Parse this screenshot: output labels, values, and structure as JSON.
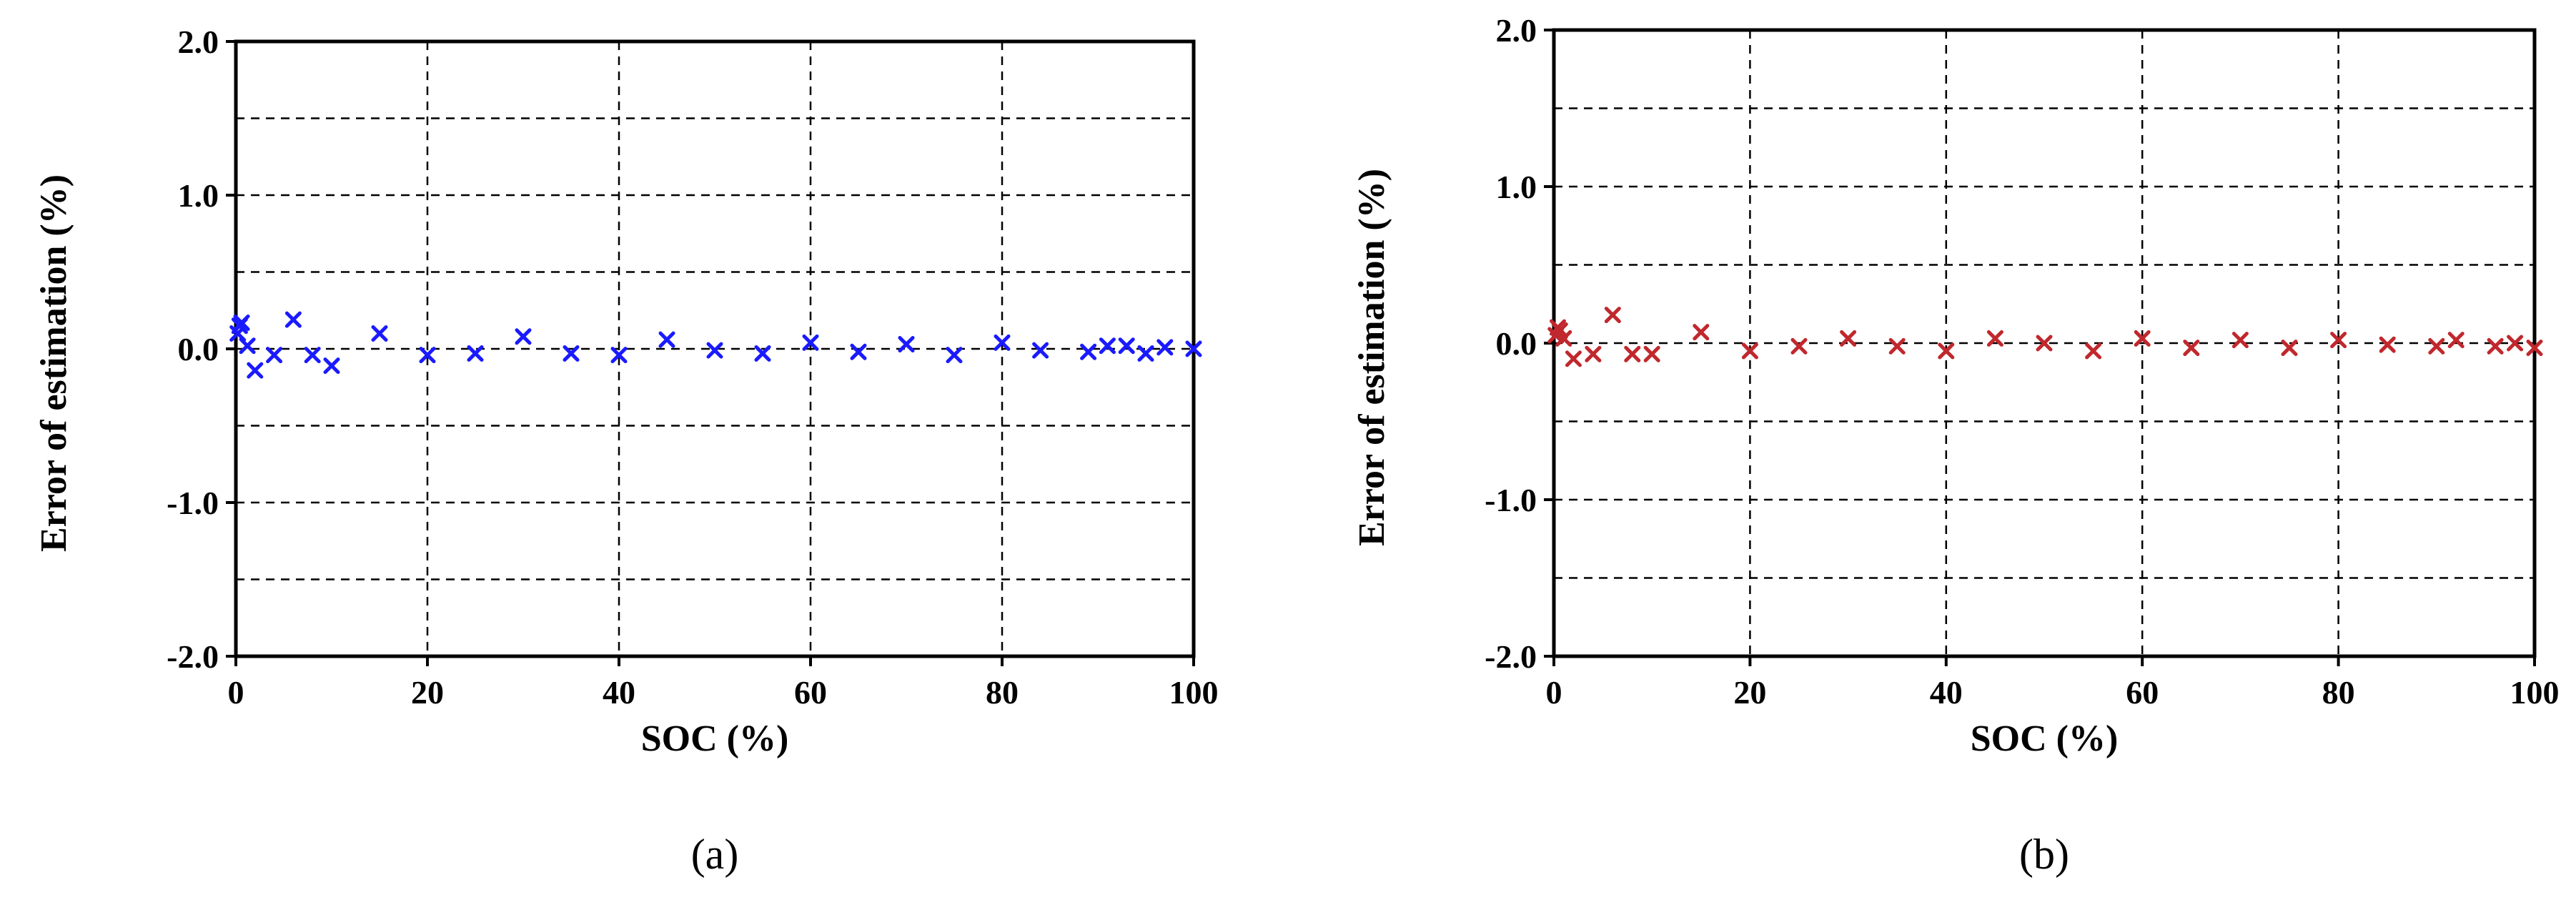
{
  "chart_data": [
    {
      "type": "scatter",
      "panel_label": "(a)",
      "xlabel": "SOC (%)",
      "ylabel": "Error of estimation (%)",
      "xlim": [
        0,
        100
      ],
      "ylim": [
        -2.0,
        2.0
      ],
      "x_ticks": [
        "0",
        "20",
        "40",
        "60",
        "80",
        "100"
      ],
      "y_ticks": [
        "2.0",
        "1.0",
        "0.0",
        "-1.0",
        "-2.0"
      ],
      "grid": true,
      "marker": "x",
      "color": "#1a1aff",
      "x": [
        0.2,
        0.4,
        0.6,
        1.2,
        2.0,
        4.0,
        6.0,
        8.0,
        10.0,
        15.0,
        20.0,
        25.0,
        30.0,
        35.0,
        40.0,
        45.0,
        50.0,
        55.0,
        60.0,
        65.0,
        70.0,
        75.0,
        80.0,
        84.0,
        89.0,
        91.0,
        93.0,
        95.0,
        97.0,
        100.0
      ],
      "y": [
        0.1,
        0.15,
        0.17,
        0.02,
        -0.14,
        -0.04,
        0.19,
        -0.04,
        -0.11,
        0.1,
        -0.04,
        -0.03,
        0.08,
        -0.03,
        -0.04,
        0.06,
        -0.01,
        -0.03,
        0.04,
        -0.02,
        0.03,
        -0.04,
        0.04,
        -0.01,
        -0.02,
        0.02,
        0.02,
        -0.03,
        0.01,
        0.0
      ]
    },
    {
      "type": "scatter",
      "panel_label": "(b)",
      "xlabel": "SOC (%)",
      "ylabel": "Error of estimation (%)",
      "xlim": [
        0,
        100
      ],
      "ylim": [
        -2.0,
        2.0
      ],
      "x_ticks": [
        "0",
        "20",
        "40",
        "60",
        "80",
        "100"
      ],
      "y_ticks": [
        "2.0",
        "1.0",
        "0.0",
        "-1.0",
        "-2.0"
      ],
      "grid": true,
      "marker": "x",
      "color": "#c0282d",
      "x": [
        0.2,
        0.4,
        0.6,
        1.0,
        2.0,
        4.0,
        6.0,
        8.0,
        10.0,
        15.0,
        20.0,
        25.0,
        30.0,
        35.0,
        40.0,
        45.0,
        50.0,
        55.0,
        60.0,
        65.0,
        70.0,
        75.0,
        80.0,
        85.0,
        90.0,
        92.0,
        96.0,
        98.0,
        100.0
      ],
      "y": [
        0.05,
        0.1,
        0.08,
        0.03,
        -0.1,
        -0.07,
        0.18,
        -0.07,
        -0.07,
        0.07,
        -0.05,
        -0.02,
        0.03,
        -0.02,
        -0.05,
        0.03,
        0.0,
        -0.05,
        0.03,
        -0.03,
        0.02,
        -0.03,
        0.02,
        -0.01,
        -0.02,
        0.02,
        -0.02,
        0.0,
        -0.03
      ]
    }
  ]
}
